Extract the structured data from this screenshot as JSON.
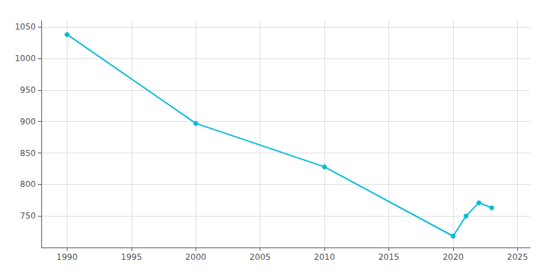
{
  "chart_data": {
    "type": "line",
    "x": [
      1990,
      2000,
      2010,
      2020,
      2021,
      2022,
      2023
    ],
    "values": [
      1038,
      897,
      828,
      718,
      750,
      771,
      763
    ],
    "color": "#00bcd4",
    "marker": "circle",
    "xlim": [
      1988,
      2026
    ],
    "xticks": [
      1990,
      1995,
      2000,
      2005,
      2010,
      2015,
      2020,
      2025
    ],
    "ylim": [
      700,
      1060
    ],
    "yticks": [
      750,
      800,
      850,
      900,
      950,
      1000,
      1050
    ],
    "grid": true
  }
}
